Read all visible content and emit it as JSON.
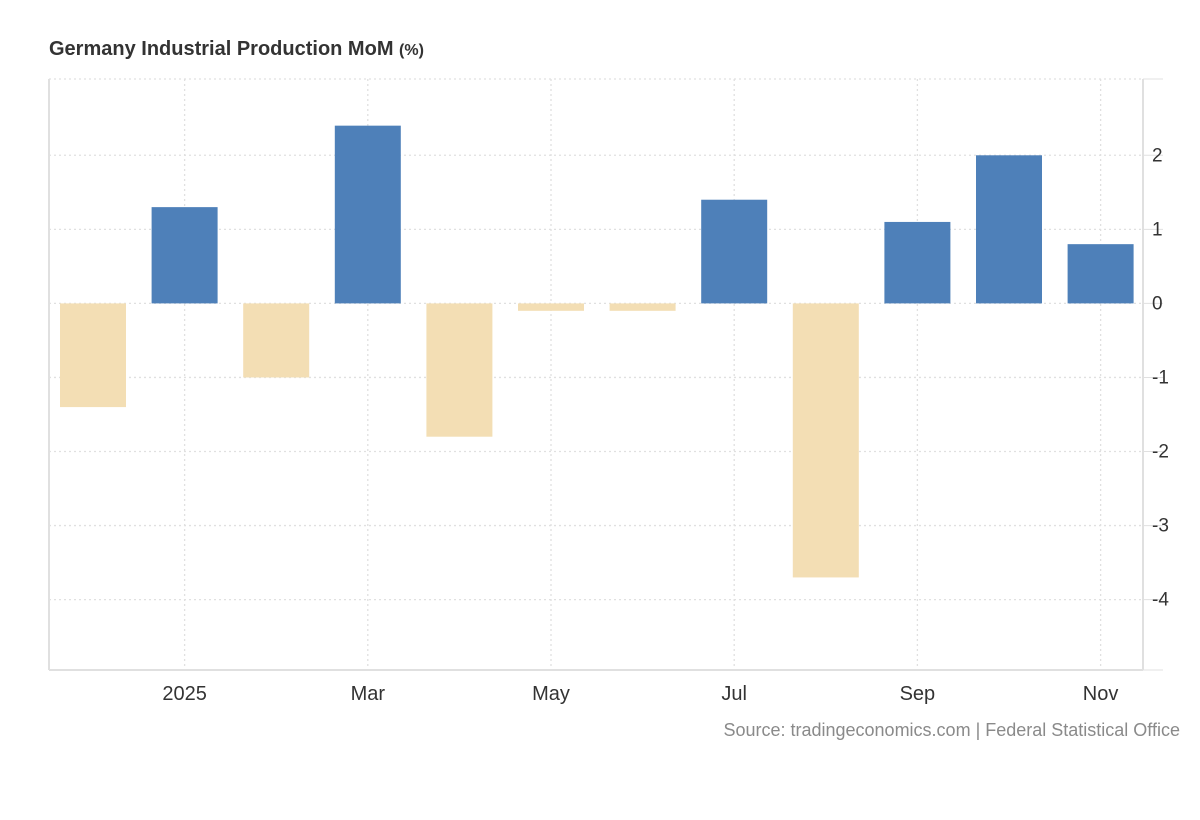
{
  "chart_data": {
    "type": "bar",
    "title": "Germany Industrial Production MoM",
    "title_unit": "(%)",
    "xlabel": "",
    "ylabel": "",
    "categories": [
      "Dec 2024",
      "Jan 2025",
      "Feb 2025",
      "Mar 2025",
      "Apr 2025",
      "May 2025",
      "Jun 2025",
      "Jul 2025",
      "Aug 2025",
      "Sep 2025",
      "Oct 2025",
      "Nov 2025"
    ],
    "values": [
      -1.4,
      1.3,
      -1.0,
      2.4,
      -1.8,
      -0.1,
      -0.1,
      1.4,
      -3.7,
      1.1,
      2.0,
      0.8
    ],
    "ylim": [
      -4.95,
      3.03
    ],
    "yticks": [
      2,
      1,
      0,
      -1,
      -2,
      -3,
      -4
    ],
    "ytick_labels": [
      "2",
      "1",
      "0",
      "-1",
      "-2",
      "-3",
      "-4"
    ],
    "xticks": [
      {
        "label": "2025",
        "month_index": 1
      },
      {
        "label": "Mar",
        "month_index": 3
      },
      {
        "label": "May",
        "month_index": 5
      },
      {
        "label": "Jul",
        "month_index": 7
      },
      {
        "label": "Sep",
        "month_index": 9
      },
      {
        "label": "Nov",
        "month_index": 11
      }
    ],
    "y_axis_position": "right",
    "grid": true,
    "colors": {
      "positive": "#4e80b9",
      "negative": "#f3deb4",
      "grid": "#e0e0e0",
      "axis": "#e0e0e0",
      "tick_text": "#333333"
    },
    "source": "Source: tradingeconomics.com | Federal Statistical Office"
  }
}
